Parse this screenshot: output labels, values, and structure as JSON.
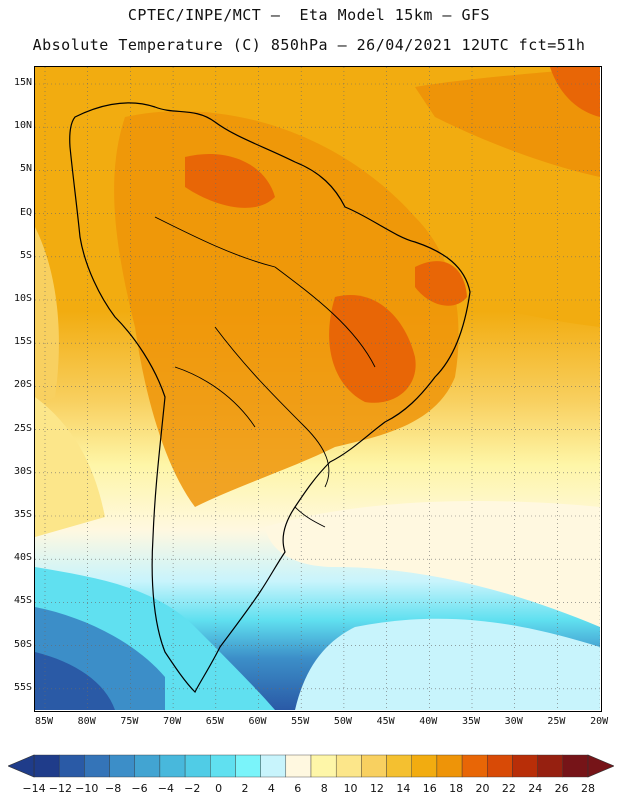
{
  "title_line1": "CPTEC/INPE/MCT –  Eta Model 15km – GFS",
  "title_line2": "Absolute Temperature (C) 850hPa – 26/04/2021 12UTC fct=51h",
  "lat_labels": [
    "15N",
    "10N",
    "5N",
    "EQ",
    "5S",
    "10S",
    "15S",
    "20S",
    "25S",
    "30S",
    "35S",
    "40S",
    "45S",
    "50S",
    "55S"
  ],
  "lon_labels": [
    "85W",
    "80W",
    "75W",
    "70W",
    "65W",
    "60W",
    "55W",
    "50W",
    "45W",
    "40W",
    "35W",
    "30W",
    "25W",
    "20W"
  ],
  "colorbar": {
    "labels": [
      "-14",
      "-12",
      "-10",
      "-8",
      "-6",
      "-4",
      "-2",
      "0",
      "2",
      "4",
      "6",
      "8",
      "10",
      "12",
      "14",
      "16",
      "18",
      "20",
      "22",
      "24",
      "26",
      "28"
    ],
    "colors": [
      "#1f3c8a",
      "#2a5aa6",
      "#3474b8",
      "#3c8ec8",
      "#42a4d2",
      "#48b8dc",
      "#50cce6",
      "#60e0f0",
      "#7af4fa",
      "#c8f4fc",
      "#fff8e0",
      "#fef6a8",
      "#fce68a",
      "#f8d060",
      "#f4c030",
      "#f2ac10",
      "#ee9408",
      "#e86606",
      "#d84a06",
      "#b82e08",
      "#962010",
      "#761418"
    ]
  }
}
